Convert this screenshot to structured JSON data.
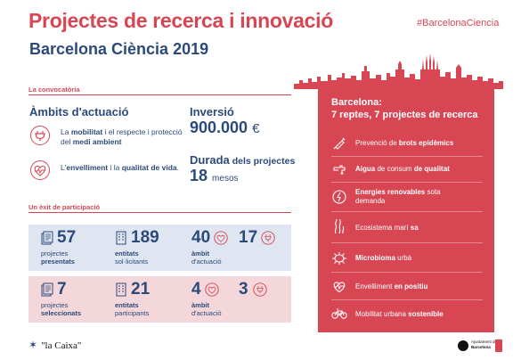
{
  "header": {
    "title": "Projectes de recerca i innovació",
    "hashtag": "#BarcelonaCiencia",
    "subtitle": "Barcelona Ciència 2019"
  },
  "convocatoria": {
    "section_label": "La convocatòria",
    "ambits_title": "Àmbits d'actuació",
    "ambit1_pre": "La ",
    "ambit1_b1": "mobilitat",
    "ambit1_mid": " i el respecte i protecció del ",
    "ambit1_b2": "medi ambient",
    "ambit2_pre": "L'",
    "ambit2_b1": "envelliment",
    "ambit2_mid": " i la ",
    "ambit2_b2": "qualitat de vida",
    "ambit2_end": ".",
    "inversio_label": "Inversió",
    "inversio_value": "900.000",
    "inversio_unit": "€",
    "durada_label": "Durada",
    "durada_rest": " dels projectes",
    "durada_value": "18",
    "durada_unit": "mesos"
  },
  "participacio": {
    "section_label": "Un èxit de participació",
    "row1": {
      "projects_num": "57",
      "projects_lbl1": "projectes",
      "projects_lbl2": "presentats",
      "entitats_num": "189",
      "entitats_lbl1": "entitats",
      "entitats_lbl2": "sol·licitants",
      "ambit_a_num": "40",
      "ambit_b_num": "17",
      "ambit_lbl1": "àmbit",
      "ambit_lbl2": "d'actuació"
    },
    "row2": {
      "projects_num": "7",
      "projects_lbl1": "projectes",
      "projects_lbl2": "seleccionats",
      "entitats_num": "21",
      "entitats_lbl1": "entitats",
      "entitats_lbl2": "participants",
      "ambit_a_num": "4",
      "ambit_b_num": "3",
      "ambit_lbl1": "àmbit",
      "ambit_lbl2": "d'actuació"
    }
  },
  "reptes": {
    "title1": "Barcelona:",
    "title2": "7 reptes, 7 projectes de recerca",
    "items": [
      {
        "pre": "Prevenció de ",
        "b": "brots epidèmics",
        "post": "",
        "line2": "",
        "icon": "syringe-icon"
      },
      {
        "pre": "Aigua",
        "b": "",
        "post": " de consum ",
        "b2": "de qualitat",
        "line2": "",
        "icon": "tap-icon"
      },
      {
        "pre": "",
        "b": "Energies renovables",
        "post": " sota",
        "line2": "demanda",
        "icon": "energy-icon"
      },
      {
        "pre": "Ecosistema marí ",
        "b": "sa",
        "post": "",
        "line2": "",
        "icon": "seaweed-icon"
      },
      {
        "pre": "",
        "b": "Microbioma",
        "post": " urbà",
        "line2": "",
        "icon": "microbe-icon"
      },
      {
        "pre": "Envelliment ",
        "b": "en positiu",
        "post": "",
        "line2": "",
        "icon": "heart-pulse-icon"
      },
      {
        "pre": "Mobilitat urbana ",
        "b": "sostenible",
        "post": "",
        "line2": "",
        "icon": "bicycle-icon"
      }
    ]
  },
  "footer": {
    "sponsor": "\"la Caixa\"",
    "ajuntament1": "Ajuntament de",
    "ajuntament2": "Barcelona"
  },
  "colors": {
    "accent_red": "#d84654",
    "navy": "#2b4a7a",
    "panel_blue": "#dfe6f2",
    "panel_pink": "#f4d7da"
  }
}
